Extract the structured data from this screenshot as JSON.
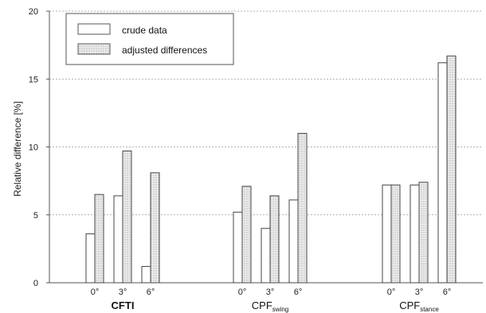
{
  "colors": {
    "crude_fill": "#ffffff",
    "adjusted_fill": "#e6e6e6",
    "bar_stroke": "#444444",
    "grid": "#999999",
    "axis": "#555555"
  },
  "chart_data": {
    "type": "bar",
    "title": "",
    "xlabel": "",
    "ylabel": "Relative difference [%]",
    "ylim": [
      0,
      20
    ],
    "yticks": [
      "0",
      "5",
      "10",
      "15",
      "20"
    ],
    "grid": true,
    "legend_position": "top-left",
    "groups": [
      {
        "label_main": "CFTI",
        "label_sub": "",
        "bold": true,
        "categories": [
          "0°",
          "3°",
          "6°"
        ],
        "crude": [
          3.6,
          6.4,
          1.2
        ],
        "adjusted": [
          6.5,
          9.7,
          8.1
        ]
      },
      {
        "label_main": "CPF",
        "label_sub": "swing",
        "bold": false,
        "categories": [
          "0°",
          "3°",
          "6°"
        ],
        "crude": [
          5.2,
          4.0,
          6.1
        ],
        "adjusted": [
          7.1,
          6.4,
          11.0
        ]
      },
      {
        "label_main": "CPF",
        "label_sub": "stance",
        "bold": false,
        "categories": [
          "0°",
          "3°",
          "6°"
        ],
        "crude": [
          7.2,
          7.2,
          16.2
        ],
        "adjusted": [
          7.2,
          7.4,
          16.7
        ]
      }
    ],
    "series": [
      {
        "name": "crude data",
        "key": "crude"
      },
      {
        "name": "adjusted differences",
        "key": "adjusted"
      }
    ]
  }
}
